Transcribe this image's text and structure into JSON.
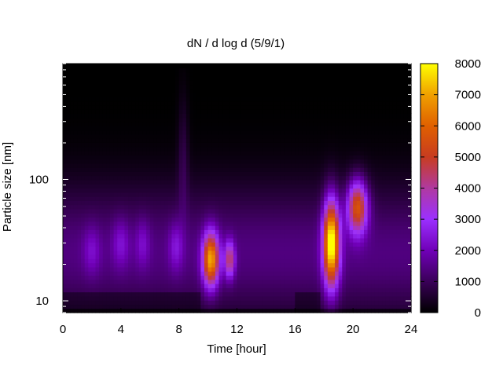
{
  "chart_data": {
    "type": "heatmap",
    "title": "dN / d log d (5/9/1)",
    "xlabel": "Time [hour]",
    "ylabel": "Particle size [nm]",
    "xlim": [
      0,
      24
    ],
    "ylim": [
      8,
      900
    ],
    "yscale": "log",
    "x_ticks": [
      "0",
      "4",
      "8",
      "12",
      "16",
      "20",
      "24"
    ],
    "y_ticks": [
      "10",
      "100"
    ],
    "colorbar": {
      "range": [
        0,
        8000
      ],
      "ticks": [
        "0",
        "1000",
        "2000",
        "3000",
        "4000",
        "5000",
        "6000",
        "7000",
        "8000"
      ],
      "palette": [
        "#000000",
        "#3a0058",
        "#7000b8",
        "#9b30ff",
        "#b03aa0",
        "#c83c20",
        "#e06000",
        "#f0a000",
        "#ffff00"
      ]
    },
    "background_level": 1400,
    "upper_cutoff_nm": 800,
    "features": [
      {
        "name": "burst",
        "time_center": 10.2,
        "time_width": 0.55,
        "size_center": 22,
        "size_spread": 0.22,
        "peak": 5800
      },
      {
        "name": "burst",
        "time_center": 11.5,
        "time_width": 0.35,
        "size_center": 22,
        "size_spread": 0.15,
        "peak": 3200
      },
      {
        "name": "burst",
        "time_center": 18.5,
        "time_width": 0.55,
        "size_center": 30,
        "size_spread": 0.35,
        "peak": 7200
      },
      {
        "name": "burst",
        "time_center": 20.3,
        "time_width": 0.7,
        "size_center": 60,
        "size_spread": 0.22,
        "peak": 4800
      },
      {
        "name": "band",
        "time_center": 2.0,
        "time_width": 0.6,
        "size_center": 26,
        "size_spread": 0.2,
        "peak": 900
      },
      {
        "name": "band",
        "time_center": 4.0,
        "time_width": 0.6,
        "size_center": 30,
        "size_spread": 0.2,
        "peak": 1000
      },
      {
        "name": "band",
        "time_center": 5.5,
        "time_width": 0.5,
        "size_center": 30,
        "size_spread": 0.2,
        "peak": 900
      },
      {
        "name": "band",
        "time_center": 7.8,
        "time_width": 0.5,
        "size_center": 28,
        "size_spread": 0.2,
        "peak": 1100
      },
      {
        "name": "band",
        "time_center": 8.3,
        "time_width": 0.35,
        "size_center": 150,
        "size_spread": 0.5,
        "peak": 700
      }
    ]
  }
}
